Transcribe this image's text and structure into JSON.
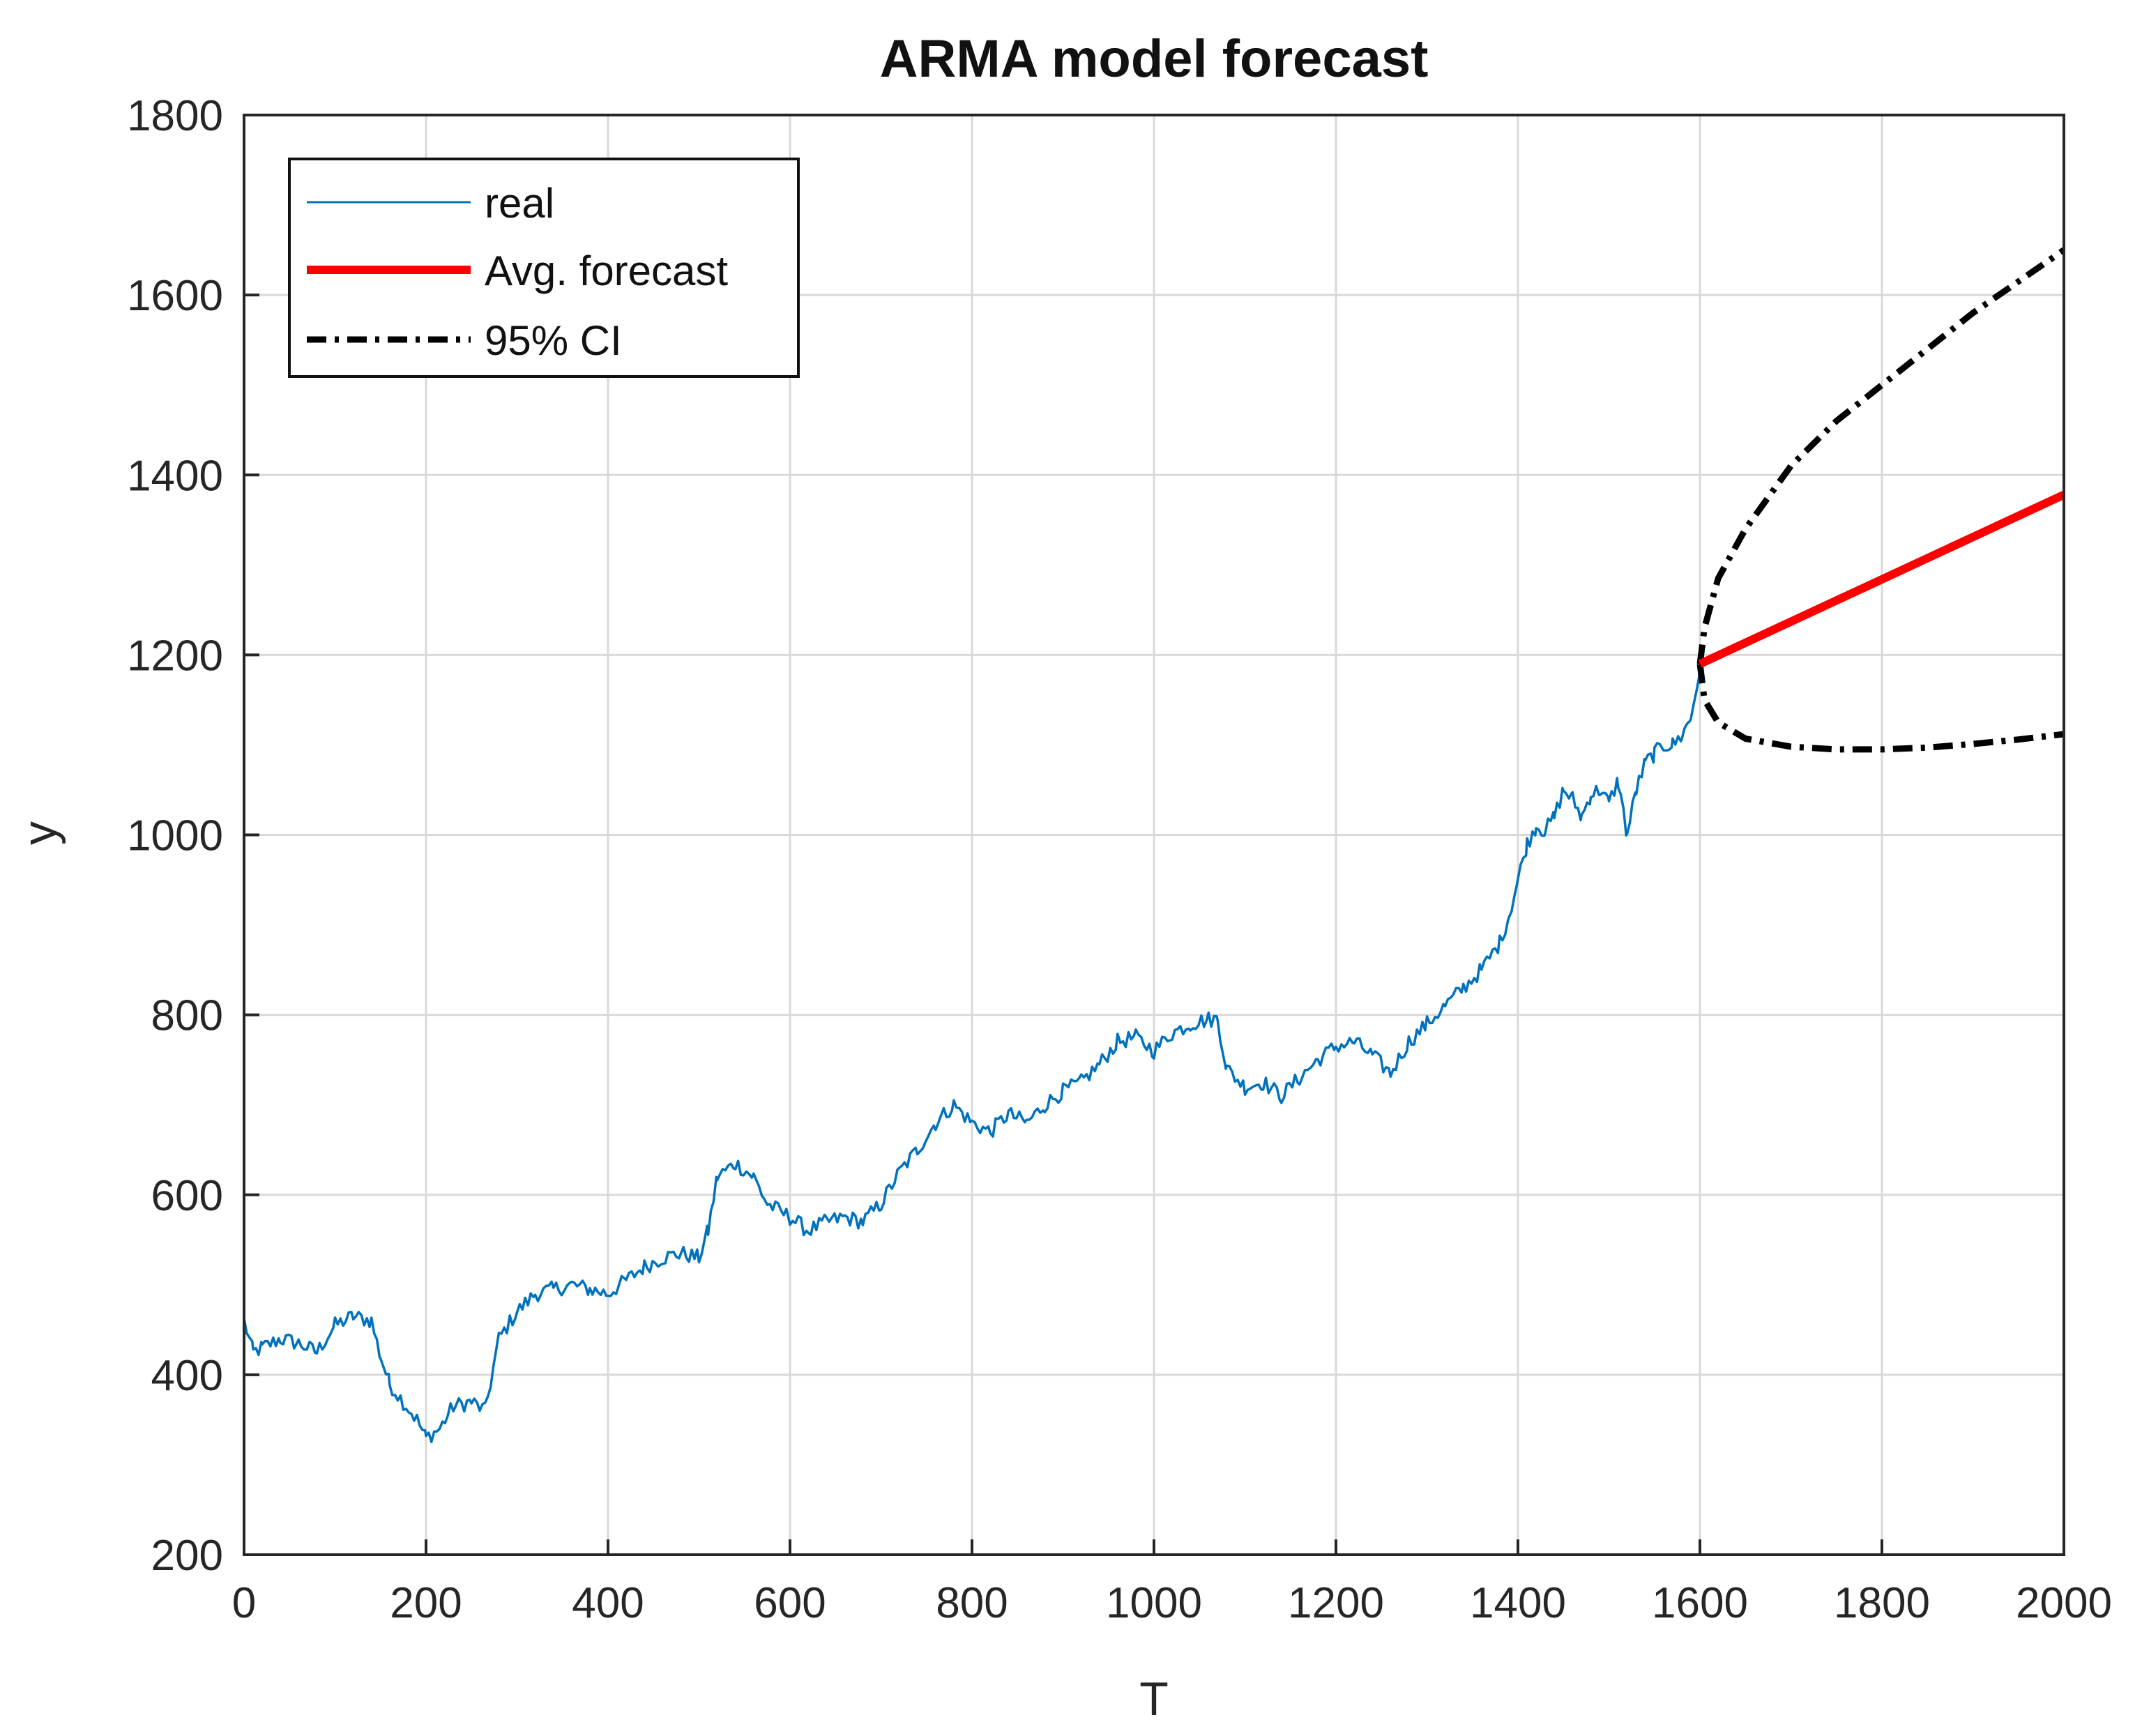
{
  "chart_data": {
    "type": "line",
    "title": "ARMA model forecast",
    "xlabel": "T",
    "ylabel": "y",
    "xlim": [
      0,
      2000
    ],
    "ylim": [
      200,
      1800
    ],
    "xticks": [
      0,
      200,
      400,
      600,
      800,
      1000,
      1200,
      1400,
      1600,
      1800,
      2000
    ],
    "yticks": [
      200,
      400,
      600,
      800,
      1000,
      1200,
      1400,
      1600,
      1800
    ],
    "grid": true,
    "legend_position": "top-left",
    "series": [
      {
        "name": "real",
        "color": "#0072bd",
        "style": "solid",
        "x": [
          0,
          10,
          20,
          40,
          60,
          80,
          100,
          120,
          140,
          150,
          160,
          175,
          190,
          200,
          215,
          230,
          250,
          265,
          280,
          300,
          320,
          340,
          360,
          380,
          400,
          420,
          440,
          460,
          480,
          500,
          510,
          520,
          540,
          560,
          575,
          600,
          620,
          640,
          660,
          680,
          700,
          720,
          740,
          760,
          780,
          800,
          820,
          840,
          860,
          880,
          900,
          920,
          940,
          960,
          980,
          1000,
          1020,
          1040,
          1060,
          1070,
          1080,
          1100,
          1120,
          1140,
          1160,
          1180,
          1200,
          1220,
          1240,
          1260,
          1280,
          1300,
          1320,
          1340,
          1360,
          1380,
          1390,
          1400,
          1410,
          1420,
          1430,
          1440,
          1450,
          1460,
          1470,
          1480,
          1490,
          1500,
          1510,
          1520,
          1530,
          1540,
          1550,
          1560,
          1570,
          1580,
          1590,
          1600
        ],
        "values": [
          460,
          425,
          430,
          440,
          435,
          425,
          455,
          465,
          460,
          420,
          390,
          370,
          350,
          330,
          340,
          365,
          370,
          360,
          440,
          470,
          490,
          495,
          500,
          495,
          490,
          505,
          520,
          530,
          535,
          530,
          560,
          620,
          635,
          620,
          590,
          575,
          560,
          570,
          575,
          570,
          590,
          625,
          650,
          680,
          700,
          680,
          670,
          690,
          680,
          700,
          715,
          725,
          745,
          770,
          775,
          760,
          780,
          790,
          795,
          795,
          740,
          720,
          725,
          710,
          730,
          750,
          765,
          770,
          755,
          735,
          770,
          790,
          810,
          830,
          850,
          880,
          910,
          950,
          990,
          1010,
          1005,
          1020,
          1050,
          1040,
          1020,
          1045,
          1050,
          1035,
          1060,
          1000,
          1050,
          1080,
          1090,
          1100,
          1100,
          1110,
          1130,
          1185
        ]
      },
      {
        "name": "Avg. forecast",
        "color": "#ff0000",
        "style": "solid",
        "x": [
          1600,
          2000
        ],
        "values": [
          1190,
          1378
        ]
      },
      {
        "name": "95% CI",
        "color": "#000000",
        "style": "dash-dot",
        "upper": {
          "x": [
            1600,
            1605,
            1620,
            1650,
            1700,
            1750,
            1800,
            1850,
            1900,
            1950,
            2000
          ],
          "values": [
            1190,
            1230,
            1285,
            1340,
            1410,
            1460,
            1500,
            1540,
            1580,
            1615,
            1650
          ]
        },
        "lower": {
          "x": [
            1600,
            1605,
            1620,
            1650,
            1700,
            1750,
            1800,
            1850,
            1900,
            1950,
            2000
          ],
          "values": [
            1190,
            1150,
            1125,
            1107,
            1098,
            1095,
            1095,
            1097,
            1101,
            1106,
            1112
          ]
        }
      }
    ]
  }
}
